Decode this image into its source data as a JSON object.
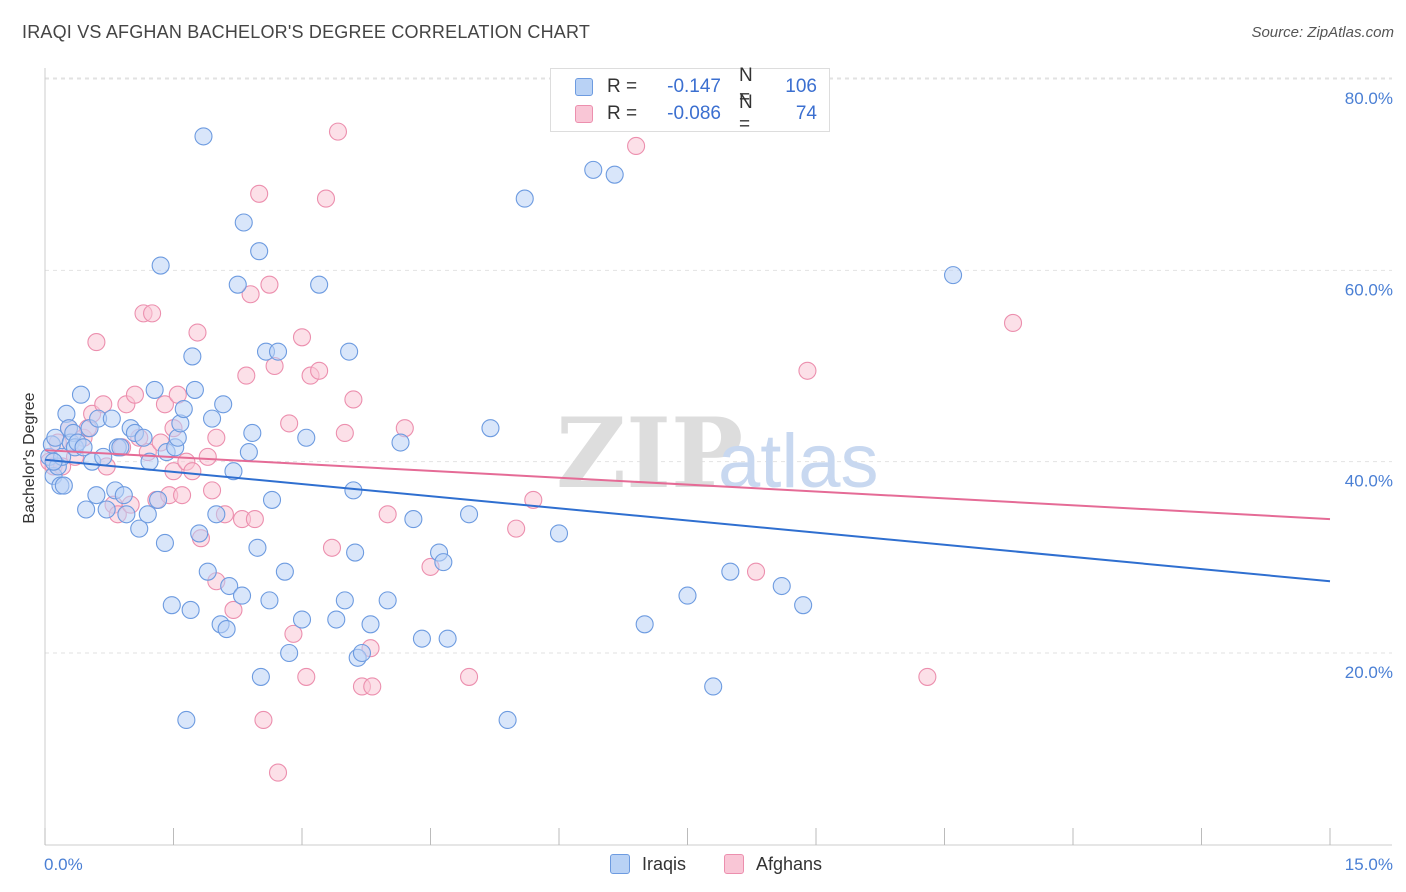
{
  "title": "IRAQI VS AFGHAN BACHELOR'S DEGREE CORRELATION CHART",
  "source": "Source: ZipAtlas.com",
  "watermark": {
    "zip": "ZIP",
    "atlas": "atlas"
  },
  "legend": {
    "rows": [
      {
        "r_label": "R =",
        "r_value": "-0.147",
        "n_label": "N =",
        "n_value": "106",
        "color": "#4a86e8"
      },
      {
        "r_label": "R =",
        "r_value": "-0.086",
        "n_label": "N =",
        "n_value": "74",
        "color": "#f48fb1"
      }
    ]
  },
  "bottom_legend": {
    "iraqis": "Iraqis",
    "afghans": "Afghans"
  },
  "colors": {
    "iraqis_fill": "#b9d2f5",
    "iraqis_stroke": "#6d9be0",
    "iraqis_line": "#2f6fd0",
    "afghans_fill": "#f9c6d6",
    "afghans_stroke": "#ec8fae",
    "afghans_line": "#e56b96",
    "grid": "#e2e2e2",
    "axis_text": "#4a7fd4"
  },
  "chart_data": {
    "type": "scatter",
    "xlabel": "",
    "ylabel": "Bachelor's Degree",
    "xlim": [
      0,
      15
    ],
    "ylim": [
      0,
      85
    ],
    "x_tick_labels": [
      "0.0%",
      "15.0%"
    ],
    "y_ticks": [
      20,
      40,
      60,
      80
    ],
    "y_tick_labels": [
      "20.0%",
      "40.0%",
      "60.0%",
      "80.0%"
    ],
    "grid": true,
    "series": [
      {
        "name": "Iraqis",
        "trend": {
          "x": [
            0,
            15
          ],
          "y": [
            40.2,
            27.5
          ]
        },
        "points": [
          [
            0.05,
            40.5
          ],
          [
            0.08,
            41.8
          ],
          [
            0.1,
            38.5
          ],
          [
            0.12,
            42.5
          ],
          [
            0.15,
            39.5
          ],
          [
            0.18,
            37.5
          ],
          [
            0.2,
            40.5
          ],
          [
            0.22,
            37.5
          ],
          [
            0.25,
            45.0
          ],
          [
            0.28,
            43.5
          ],
          [
            0.3,
            42.0
          ],
          [
            0.33,
            43.0
          ],
          [
            0.35,
            41.5
          ],
          [
            0.38,
            42.0
          ],
          [
            0.42,
            47.0
          ],
          [
            0.45,
            41.5
          ],
          [
            0.48,
            35.0
          ],
          [
            0.52,
            43.5
          ],
          [
            0.55,
            40.0
          ],
          [
            0.6,
            36.5
          ],
          [
            0.62,
            44.5
          ],
          [
            0.68,
            40.5
          ],
          [
            0.72,
            35.0
          ],
          [
            0.78,
            44.5
          ],
          [
            0.82,
            37.0
          ],
          [
            0.85,
            41.5
          ],
          [
            0.88,
            41.5
          ],
          [
            0.92,
            36.5
          ],
          [
            0.95,
            34.5
          ],
          [
            1.0,
            43.5
          ],
          [
            1.05,
            43.0
          ],
          [
            1.1,
            33.0
          ],
          [
            1.15,
            42.5
          ],
          [
            1.2,
            34.5
          ],
          [
            1.22,
            40.0
          ],
          [
            1.28,
            47.5
          ],
          [
            1.32,
            36.0
          ],
          [
            1.35,
            60.5
          ],
          [
            1.4,
            31.5
          ],
          [
            1.42,
            41.0
          ],
          [
            1.48,
            25.0
          ],
          [
            1.52,
            41.5
          ],
          [
            1.55,
            42.5
          ],
          [
            1.58,
            44.0
          ],
          [
            1.62,
            45.5
          ],
          [
            1.65,
            13.0
          ],
          [
            1.7,
            24.5
          ],
          [
            1.72,
            51.0
          ],
          [
            1.75,
            47.5
          ],
          [
            1.8,
            32.5
          ],
          [
            1.85,
            74.0
          ],
          [
            1.9,
            28.5
          ],
          [
            1.95,
            44.5
          ],
          [
            2.0,
            34.5
          ],
          [
            2.05,
            23.0
          ],
          [
            2.08,
            46.0
          ],
          [
            2.12,
            22.5
          ],
          [
            2.15,
            27.0
          ],
          [
            2.2,
            39.0
          ],
          [
            2.25,
            58.5
          ],
          [
            2.3,
            26.0
          ],
          [
            2.32,
            65.0
          ],
          [
            2.38,
            41.0
          ],
          [
            2.42,
            43.0
          ],
          [
            2.48,
            31.0
          ],
          [
            2.5,
            62.0
          ],
          [
            2.52,
            17.5
          ],
          [
            2.58,
            51.5
          ],
          [
            2.62,
            25.5
          ],
          [
            2.65,
            36.0
          ],
          [
            2.72,
            51.5
          ],
          [
            2.8,
            28.5
          ],
          [
            2.85,
            20.0
          ],
          [
            3.0,
            23.5
          ],
          [
            3.05,
            42.5
          ],
          [
            3.2,
            58.5
          ],
          [
            3.4,
            23.5
          ],
          [
            3.5,
            25.5
          ],
          [
            3.55,
            51.5
          ],
          [
            3.6,
            37.0
          ],
          [
            3.62,
            30.5
          ],
          [
            3.65,
            19.5
          ],
          [
            3.7,
            20.0
          ],
          [
            3.8,
            23.0
          ],
          [
            4.0,
            25.5
          ],
          [
            4.15,
            42.0
          ],
          [
            4.3,
            34.0
          ],
          [
            4.4,
            21.5
          ],
          [
            4.6,
            30.5
          ],
          [
            4.65,
            29.5
          ],
          [
            4.7,
            21.5
          ],
          [
            4.95,
            34.5
          ],
          [
            5.2,
            43.5
          ],
          [
            5.4,
            13.0
          ],
          [
            5.6,
            67.5
          ],
          [
            6.0,
            32.5
          ],
          [
            6.4,
            70.5
          ],
          [
            6.65,
            70.0
          ],
          [
            7.0,
            23.0
          ],
          [
            7.5,
            26.0
          ],
          [
            7.8,
            16.5
          ],
          [
            8.0,
            28.5
          ],
          [
            8.6,
            27.0
          ],
          [
            8.85,
            25.0
          ],
          [
            10.6,
            59.5
          ],
          [
            0.1,
            40.0
          ]
        ]
      },
      {
        "name": "Afghans",
        "trend": {
          "x": [
            0,
            15
          ],
          "y": [
            41.2,
            34.0
          ]
        },
        "points": [
          [
            0.05,
            40.0
          ],
          [
            0.1,
            39.5
          ],
          [
            0.15,
            42.0
          ],
          [
            0.2,
            39.5
          ],
          [
            0.28,
            43.5
          ],
          [
            0.35,
            40.5
          ],
          [
            0.45,
            42.5
          ],
          [
            0.5,
            43.5
          ],
          [
            0.55,
            45.0
          ],
          [
            0.6,
            52.5
          ],
          [
            0.68,
            46.0
          ],
          [
            0.72,
            39.5
          ],
          [
            0.8,
            35.5
          ],
          [
            0.85,
            34.5
          ],
          [
            0.9,
            41.5
          ],
          [
            0.95,
            46.0
          ],
          [
            1.0,
            35.5
          ],
          [
            1.05,
            47.0
          ],
          [
            1.1,
            42.5
          ],
          [
            1.15,
            55.5
          ],
          [
            1.2,
            41.0
          ],
          [
            1.25,
            55.5
          ],
          [
            1.3,
            36.0
          ],
          [
            1.35,
            42.0
          ],
          [
            1.4,
            46.0
          ],
          [
            1.45,
            36.5
          ],
          [
            1.5,
            39.0
          ],
          [
            1.55,
            47.0
          ],
          [
            1.6,
            36.5
          ],
          [
            1.65,
            40.0
          ],
          [
            1.72,
            39.0
          ],
          [
            1.78,
            53.5
          ],
          [
            1.82,
            32.0
          ],
          [
            1.9,
            40.5
          ],
          [
            1.95,
            37.0
          ],
          [
            2.0,
            27.5
          ],
          [
            2.1,
            34.5
          ],
          [
            2.2,
            24.5
          ],
          [
            2.3,
            34.0
          ],
          [
            2.35,
            49.0
          ],
          [
            2.4,
            57.5
          ],
          [
            2.45,
            34.0
          ],
          [
            2.5,
            68.0
          ],
          [
            2.55,
            13.0
          ],
          [
            2.62,
            58.5
          ],
          [
            2.68,
            50.0
          ],
          [
            2.72,
            7.5
          ],
          [
            2.85,
            44.0
          ],
          [
            2.9,
            22.0
          ],
          [
            3.0,
            53.0
          ],
          [
            3.05,
            17.5
          ],
          [
            3.1,
            49.0
          ],
          [
            3.2,
            49.5
          ],
          [
            3.28,
            67.5
          ],
          [
            3.35,
            31.0
          ],
          [
            3.42,
            74.5
          ],
          [
            3.5,
            43.0
          ],
          [
            3.6,
            46.5
          ],
          [
            3.7,
            16.5
          ],
          [
            3.8,
            20.5
          ],
          [
            3.82,
            16.5
          ],
          [
            4.0,
            34.5
          ],
          [
            4.2,
            43.5
          ],
          [
            4.5,
            29.0
          ],
          [
            4.95,
            17.5
          ],
          [
            5.5,
            33.0
          ],
          [
            5.7,
            36.0
          ],
          [
            6.9,
            73.0
          ],
          [
            8.3,
            28.5
          ],
          [
            8.9,
            49.5
          ],
          [
            10.3,
            17.5
          ],
          [
            11.3,
            54.5
          ],
          [
            2.0,
            42.5
          ],
          [
            1.5,
            43.5
          ]
        ]
      }
    ]
  }
}
